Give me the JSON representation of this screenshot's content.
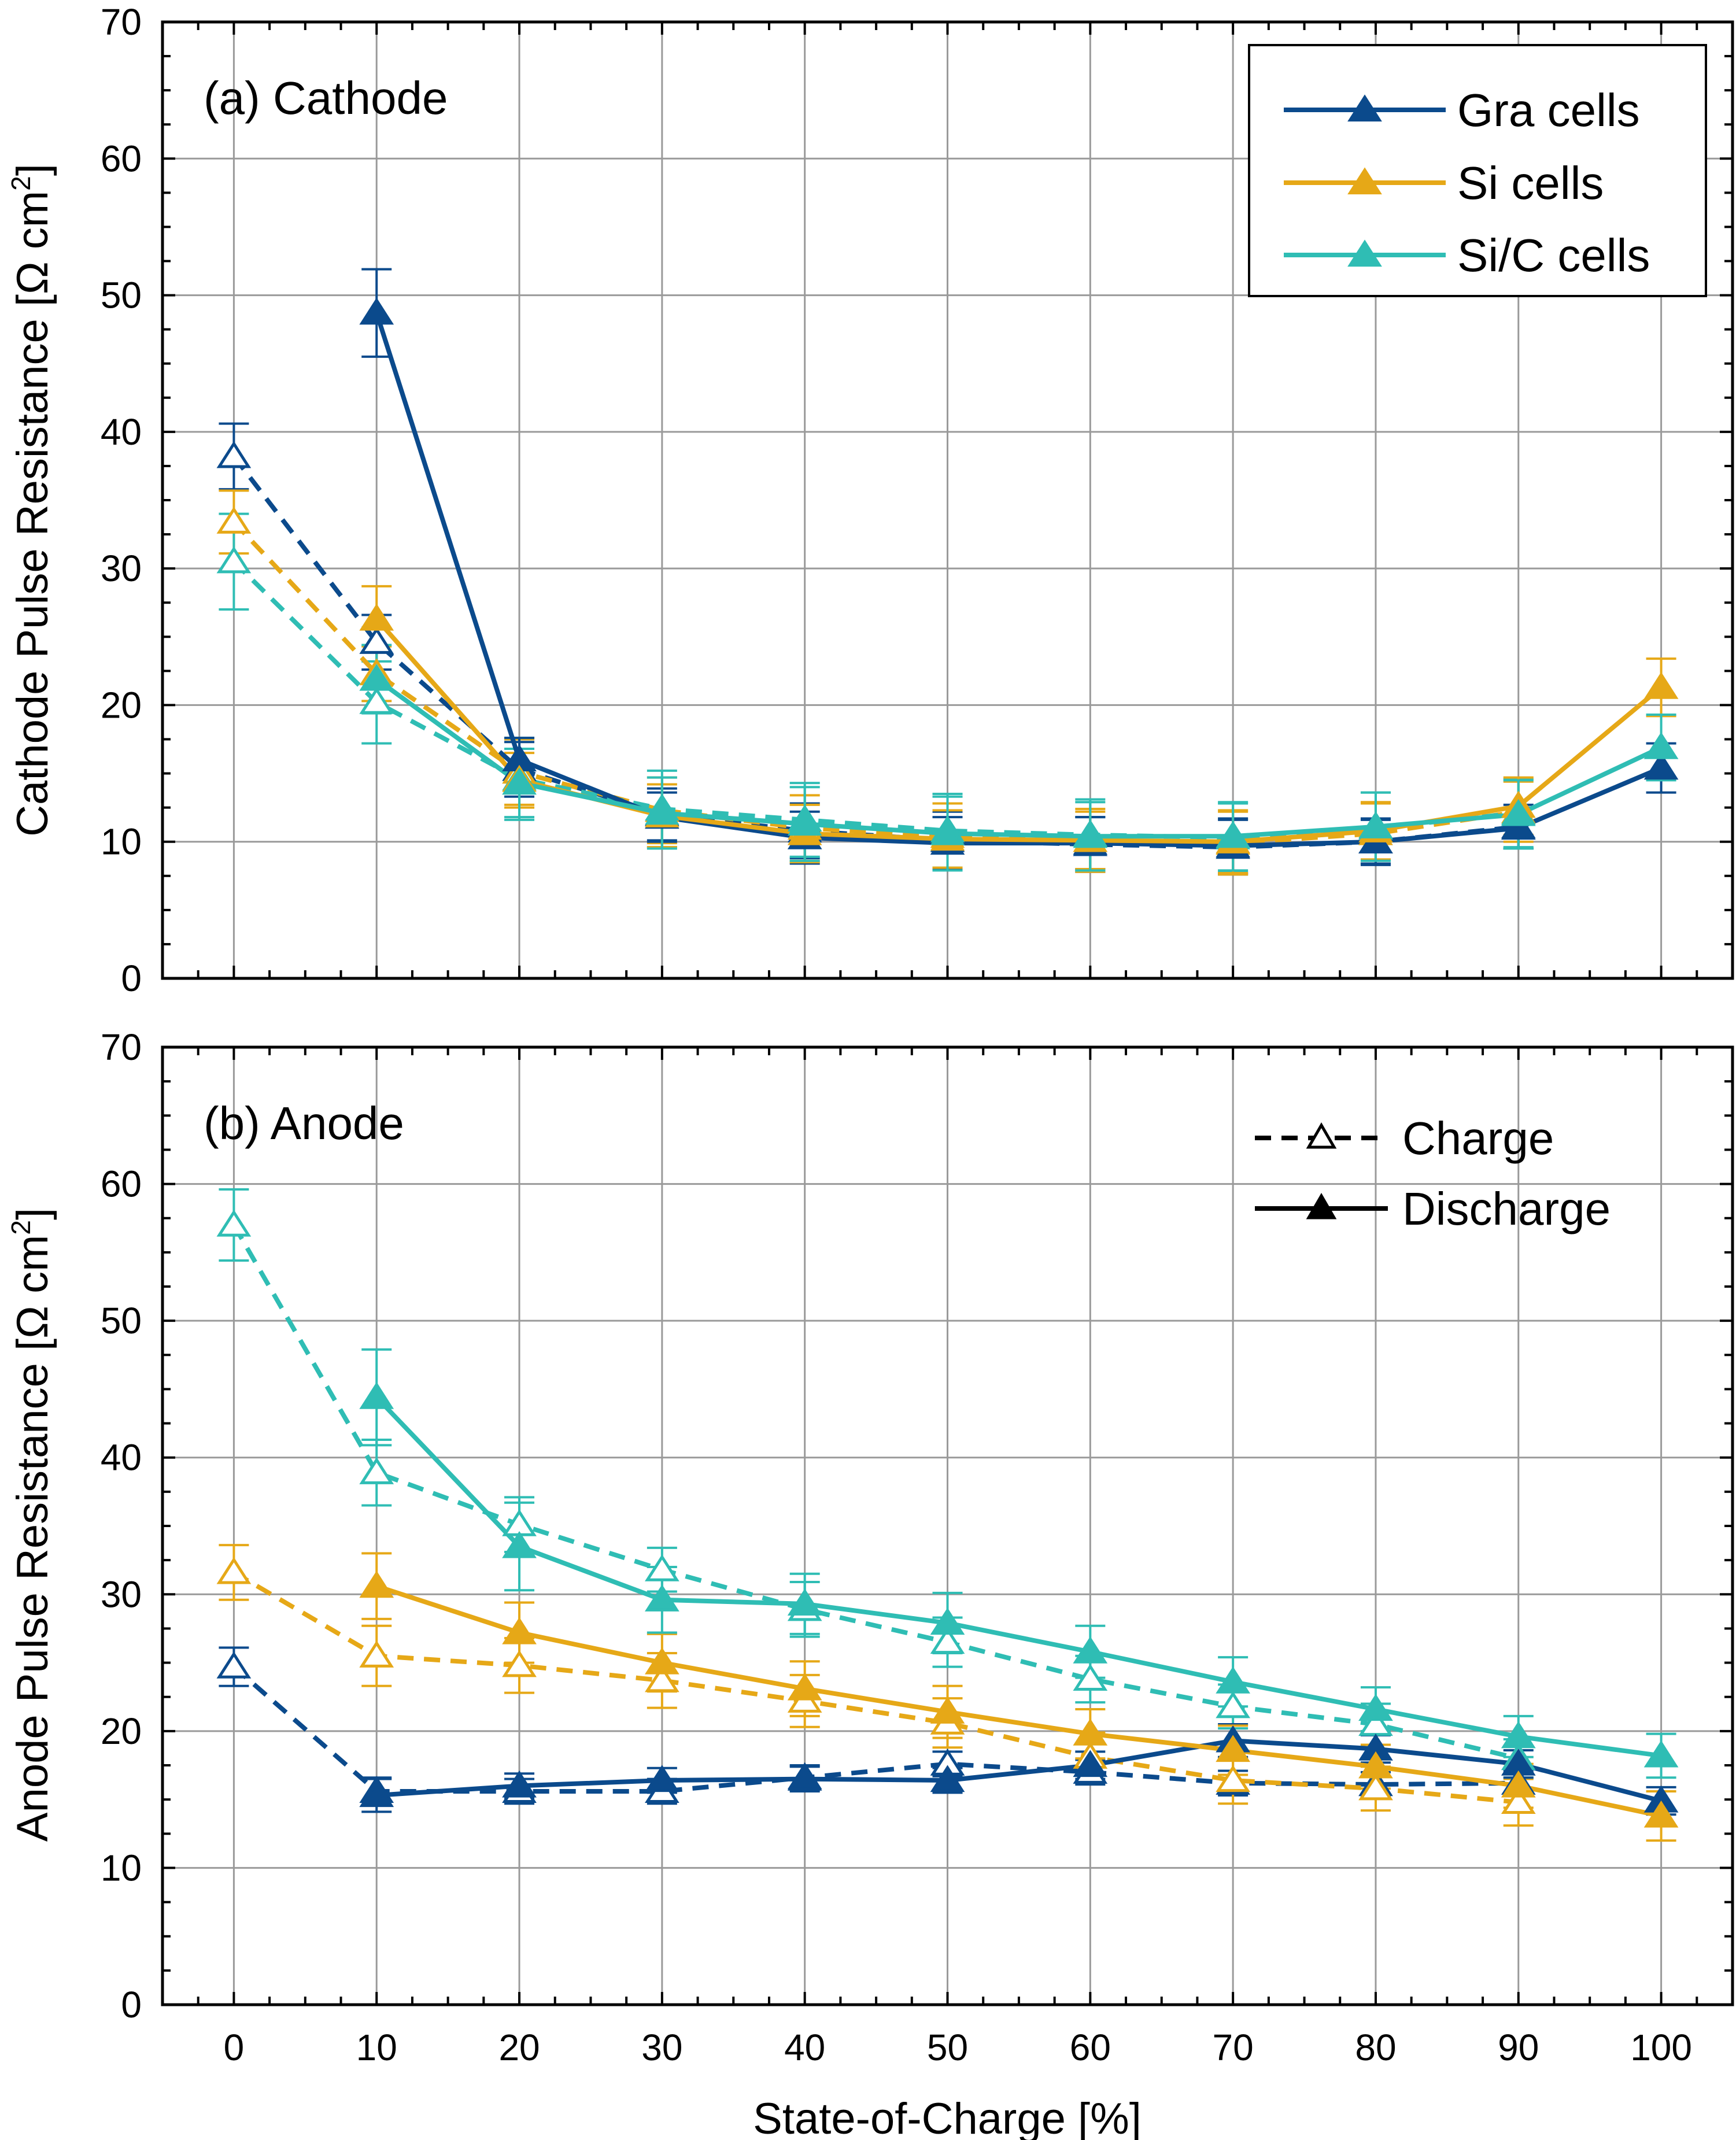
{
  "figure": {
    "xlabel": "State-of-Charge [%]"
  },
  "colors": {
    "gra": "#0B4A8C",
    "si": "#E6A817",
    "sic": "#2FBDB4",
    "grid": "#9a9a9a",
    "axis": "#000000"
  },
  "chart_data": [
    {
      "type": "line",
      "panel": "a",
      "panel_label": "(a) Cathode",
      "title": "",
      "xlabel": "State-of-Charge [%]",
      "ylabel": "Cathode Pulse Resistance [Ω cm²]",
      "xlim": [
        -5,
        105
      ],
      "ylim": [
        0,
        70
      ],
      "x_ticks": [
        0,
        10,
        20,
        30,
        40,
        50,
        60,
        70,
        80,
        90,
        100
      ],
      "y_ticks": [
        0,
        10,
        20,
        30,
        40,
        50,
        60,
        70
      ],
      "grid": true,
      "legend": {
        "placement": "top-right",
        "entries": [
          "Gra cells",
          "Si cells",
          "Si/C cells"
        ]
      },
      "series": [
        {
          "name": "Gra cells",
          "mode": "Discharge",
          "color": "#0B4A8C",
          "x": [
            10,
            20,
            30,
            40,
            50,
            60,
            70,
            80,
            90,
            100
          ],
          "y": [
            48.7,
            16.0,
            11.8,
            10.3,
            9.9,
            9.9,
            9.7,
            10.0,
            11.0,
            15.4
          ],
          "err": [
            3.2,
            1.6,
            1.8,
            1.9,
            1.9,
            1.9,
            2.0,
            1.6,
            1.5,
            1.8
          ]
        },
        {
          "name": "Si cells",
          "mode": "Discharge",
          "color": "#E6A817",
          "x": [
            10,
            20,
            30,
            40,
            50,
            60,
            70,
            80,
            90,
            100
          ],
          "y": [
            26.3,
            14.5,
            11.9,
            10.6,
            10.2,
            10.1,
            10.0,
            10.8,
            12.6,
            21.3
          ],
          "err": [
            2.4,
            2.0,
            2.3,
            2.1,
            2.1,
            2.1,
            2.3,
            2.1,
            2.1,
            2.1
          ]
        },
        {
          "name": "Si/C cells",
          "mode": "Discharge",
          "color": "#2FBDB4",
          "x": [
            10,
            20,
            30,
            40,
            50,
            60,
            70,
            80,
            90,
            100
          ],
          "y": [
            21.9,
            14.3,
            12.1,
            11.3,
            10.6,
            10.4,
            10.4,
            11.1,
            12.0,
            16.9
          ],
          "err": [
            2.5,
            2.5,
            2.6,
            2.7,
            2.7,
            2.5,
            2.5,
            2.5,
            2.5,
            2.4
          ]
        },
        {
          "name": "Gra cells",
          "mode": "Charge",
          "color": "#0B4A8C",
          "x": [
            0,
            10,
            20,
            30,
            40,
            50,
            60,
            70,
            80,
            90
          ],
          "y": [
            38.2,
            24.6,
            15.3,
            12.0,
            10.8,
            10.1,
            9.8,
            9.6,
            10.0,
            11.1
          ],
          "err": [
            2.4,
            2.0,
            2.0,
            1.9,
            2.0,
            2.1,
            2.0,
            2.0,
            1.7,
            1.6
          ]
        },
        {
          "name": "Si cells",
          "mode": "Charge",
          "color": "#E6A817",
          "x": [
            0,
            10,
            20,
            30,
            40,
            50,
            60,
            70,
            80,
            90
          ],
          "y": [
            33.4,
            22.3,
            15.1,
            12.3,
            11.0,
            10.4,
            10.1,
            9.9,
            10.6,
            12.2
          ],
          "err": [
            2.3,
            2.0,
            2.4,
            2.4,
            2.4,
            2.4,
            2.3,
            2.3,
            2.2,
            2.2
          ]
        },
        {
          "name": "Si/C cells",
          "mode": "Charge",
          "color": "#2FBDB4",
          "x": [
            0,
            10,
            20,
            30,
            40,
            50,
            60,
            70,
            80,
            90
          ],
          "y": [
            30.5,
            20.2,
            14.6,
            12.4,
            11.6,
            10.8,
            10.5,
            10.3,
            11.0,
            12.1
          ],
          "err": [
            3.5,
            3.0,
            3.0,
            2.8,
            2.7,
            2.7,
            2.6,
            2.5,
            2.6,
            2.5
          ]
        }
      ]
    },
    {
      "type": "line",
      "panel": "b",
      "panel_label": "(b) Anode",
      "title": "",
      "xlabel": "State-of-Charge [%]",
      "ylabel": "Anode Pulse Resistance [Ω cm²]",
      "xlim": [
        -5,
        105
      ],
      "ylim": [
        0,
        70
      ],
      "x_ticks": [
        0,
        10,
        20,
        30,
        40,
        50,
        60,
        70,
        80,
        90,
        100
      ],
      "y_ticks": [
        0,
        10,
        20,
        30,
        40,
        50,
        60,
        70
      ],
      "grid": true,
      "legend": {
        "placement": "top-right",
        "entries": [
          "Charge",
          "Discharge"
        ]
      },
      "series": [
        {
          "name": "Gra cells",
          "mode": "Discharge",
          "color": "#0B4A8C",
          "x": [
            10,
            20,
            30,
            40,
            50,
            60,
            70,
            80,
            90,
            100
          ],
          "y": [
            15.3,
            16.0,
            16.4,
            16.5,
            16.4,
            17.5,
            19.3,
            18.7,
            17.6,
            14.9
          ],
          "err": [
            1.2,
            0.9,
            0.9,
            0.9,
            0.9,
            1.0,
            1.2,
            1.0,
            1.0,
            1.0
          ]
        },
        {
          "name": "Si cells",
          "mode": "Discharge",
          "color": "#E6A817",
          "x": [
            10,
            20,
            30,
            40,
            50,
            60,
            70,
            80,
            90,
            100
          ],
          "y": [
            30.6,
            27.2,
            25.0,
            23.1,
            21.4,
            19.8,
            18.6,
            17.4,
            16.0,
            13.8
          ],
          "err": [
            2.4,
            2.2,
            2.1,
            2.0,
            1.9,
            1.8,
            1.8,
            1.6,
            1.6,
            1.8
          ]
        },
        {
          "name": "Si/C cells",
          "mode": "Discharge",
          "color": "#2FBDB4",
          "x": [
            10,
            20,
            30,
            40,
            50,
            60,
            70,
            80,
            90,
            100
          ],
          "y": [
            44.4,
            33.5,
            29.6,
            29.3,
            27.9,
            25.8,
            23.6,
            21.6,
            19.6,
            18.2
          ],
          "err": [
            3.5,
            3.2,
            2.4,
            2.2,
            2.2,
            1.9,
            1.8,
            1.6,
            1.5,
            1.6
          ]
        },
        {
          "name": "Gra cells",
          "mode": "Charge",
          "color": "#0B4A8C",
          "x": [
            0,
            10,
            20,
            30,
            40,
            50,
            60,
            70,
            80,
            90
          ],
          "y": [
            24.7,
            15.6,
            15.6,
            15.6,
            16.6,
            17.6,
            17.0,
            16.2,
            16.1,
            16.2
          ],
          "err": [
            1.4,
            1.0,
            0.9,
            0.9,
            0.9,
            0.9,
            0.9,
            0.9,
            0.9,
            0.9
          ]
        },
        {
          "name": "Si cells",
          "mode": "Charge",
          "color": "#E6A817",
          "x": [
            0,
            10,
            20,
            30,
            40,
            50,
            60,
            70,
            80,
            90
          ],
          "y": [
            31.6,
            25.5,
            24.8,
            23.7,
            22.2,
            20.6,
            18.1,
            16.4,
            15.8,
            14.8
          ],
          "err": [
            2.0,
            2.2,
            2.0,
            2.0,
            1.9,
            1.8,
            1.8,
            1.7,
            1.6,
            1.7
          ]
        },
        {
          "name": "Si/C cells",
          "mode": "Charge",
          "color": "#2FBDB4",
          "x": [
            0,
            10,
            20,
            30,
            40,
            50,
            60,
            70,
            80,
            90
          ],
          "y": [
            57.0,
            38.9,
            35.1,
            31.8,
            28.9,
            26.5,
            23.8,
            21.8,
            20.5,
            18.0
          ],
          "err": [
            2.6,
            2.4,
            2.0,
            1.6,
            2.0,
            1.8,
            1.7,
            1.6,
            1.5,
            1.4
          ]
        }
      ]
    }
  ]
}
